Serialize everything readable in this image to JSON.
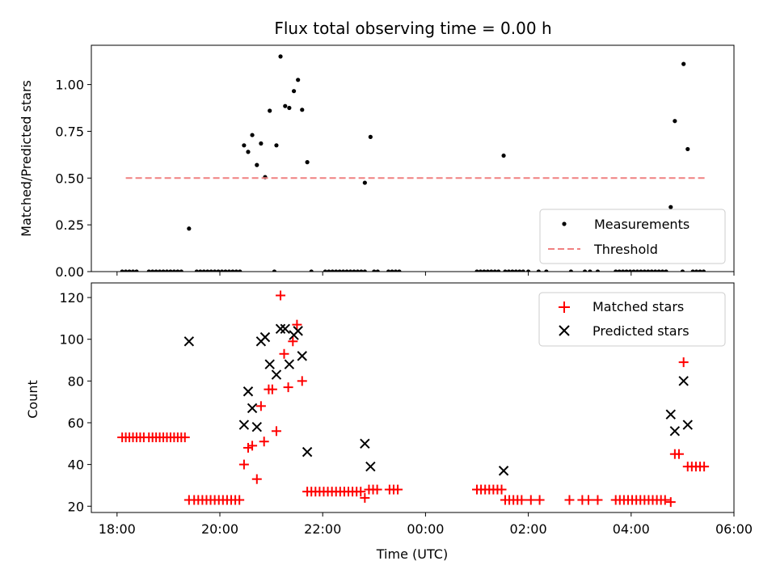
{
  "chart_data": [
    {
      "type": "scatter",
      "title": "Flux total observing time = 0.00 h",
      "xlabel": "",
      "ylabel": "Matched/Predicted stars",
      "xlim": [
        17.5,
        30.0
      ],
      "ylim": [
        0.0,
        1.21
      ],
      "xticks_hidden": true,
      "yticks": [
        0.0,
        0.25,
        0.5,
        0.75,
        1.0
      ],
      "ytick_labels": [
        "0.00",
        "0.25",
        "0.50",
        "0.75",
        "1.00"
      ],
      "legend_position": "lower-right",
      "series": [
        {
          "name": "Measurements",
          "kind": "scatter",
          "marker": "dot",
          "color": "#000000",
          "points": [
            [
              18.1,
              0
            ],
            [
              18.17,
              0
            ],
            [
              18.24,
              0
            ],
            [
              18.31,
              0
            ],
            [
              18.38,
              0
            ],
            [
              18.62,
              0
            ],
            [
              18.69,
              0
            ],
            [
              18.76,
              0
            ],
            [
              18.83,
              0
            ],
            [
              18.9,
              0
            ],
            [
              18.97,
              0
            ],
            [
              19.04,
              0
            ],
            [
              19.11,
              0
            ],
            [
              19.18,
              0
            ],
            [
              19.25,
              0
            ],
            [
              19.4,
              0.23
            ],
            [
              19.55,
              0
            ],
            [
              19.62,
              0
            ],
            [
              19.69,
              0
            ],
            [
              19.76,
              0
            ],
            [
              19.83,
              0
            ],
            [
              19.9,
              0
            ],
            [
              19.97,
              0
            ],
            [
              20.04,
              0
            ],
            [
              20.11,
              0
            ],
            [
              20.18,
              0
            ],
            [
              20.25,
              0
            ],
            [
              20.32,
              0
            ],
            [
              20.39,
              0
            ],
            [
              20.47,
              0.675
            ],
            [
              20.55,
              0.64
            ],
            [
              20.63,
              0.73
            ],
            [
              20.72,
              0.57
            ],
            [
              20.8,
              0.685
            ],
            [
              20.88,
              0.505
            ],
            [
              20.97,
              0.86
            ],
            [
              21.06,
              0
            ],
            [
              21.1,
              0.675
            ],
            [
              21.18,
              1.15
            ],
            [
              21.27,
              0.885
            ],
            [
              21.35,
              0.875
            ],
            [
              21.44,
              0.965
            ],
            [
              21.52,
              1.025
            ],
            [
              21.6,
              0.865
            ],
            [
              21.7,
              0.585
            ],
            [
              21.78,
              0
            ],
            [
              22.05,
              0
            ],
            [
              22.12,
              0
            ],
            [
              22.19,
              0
            ],
            [
              22.26,
              0
            ],
            [
              22.33,
              0
            ],
            [
              22.4,
              0
            ],
            [
              22.47,
              0
            ],
            [
              22.54,
              0
            ],
            [
              22.61,
              0
            ],
            [
              22.68,
              0
            ],
            [
              22.75,
              0
            ],
            [
              22.82,
              0
            ],
            [
              22.82,
              0.475
            ],
            [
              22.93,
              0.72
            ],
            [
              23.0,
              0
            ],
            [
              23.07,
              0
            ],
            [
              23.28,
              0
            ],
            [
              23.35,
              0
            ],
            [
              23.42,
              0
            ],
            [
              23.49,
              0
            ],
            [
              25.0,
              0
            ],
            [
              25.07,
              0
            ],
            [
              25.14,
              0
            ],
            [
              25.21,
              0
            ],
            [
              25.28,
              0
            ],
            [
              25.35,
              0
            ],
            [
              25.42,
              0
            ],
            [
              25.52,
              0.62
            ],
            [
              25.55,
              0
            ],
            [
              25.62,
              0
            ],
            [
              25.69,
              0
            ],
            [
              25.76,
              0
            ],
            [
              25.83,
              0
            ],
            [
              25.9,
              0
            ],
            [
              26.0,
              0
            ],
            [
              26.2,
              0
            ],
            [
              26.35,
              0
            ],
            [
              26.83,
              0
            ],
            [
              27.1,
              0
            ],
            [
              27.2,
              0
            ],
            [
              27.35,
              0
            ],
            [
              27.7,
              0
            ],
            [
              27.77,
              0
            ],
            [
              27.84,
              0
            ],
            [
              27.91,
              0
            ],
            [
              27.98,
              0
            ],
            [
              28.05,
              0
            ],
            [
              28.12,
              0
            ],
            [
              28.19,
              0
            ],
            [
              28.26,
              0
            ],
            [
              28.33,
              0
            ],
            [
              28.4,
              0
            ],
            [
              28.47,
              0
            ],
            [
              28.54,
              0
            ],
            [
              28.61,
              0
            ],
            [
              28.68,
              0
            ],
            [
              28.77,
              0.345
            ],
            [
              28.85,
              0.805
            ],
            [
              29.0,
              0
            ],
            [
              29.02,
              1.11
            ],
            [
              29.1,
              0.655
            ],
            [
              29.2,
              0
            ],
            [
              29.27,
              0
            ],
            [
              29.34,
              0
            ],
            [
              29.41,
              0
            ]
          ]
        },
        {
          "name": "Threshold",
          "kind": "line",
          "style": "dashed",
          "color": "#f08080",
          "x": [
            18.17,
            29.45
          ],
          "y": [
            0.5,
            0.5
          ]
        }
      ]
    },
    {
      "type": "scatter",
      "title": "",
      "xlabel": "Time (UTC)",
      "ylabel": "Count",
      "xlim": [
        17.5,
        30.0
      ],
      "ylim": [
        17,
        127
      ],
      "xticks": [
        18,
        20,
        22,
        24,
        26,
        28,
        30
      ],
      "xtick_labels": [
        "18:00",
        "20:00",
        "22:00",
        "00:00",
        "02:00",
        "04:00",
        "06:00"
      ],
      "yticks": [
        20,
        40,
        60,
        80,
        100,
        120
      ],
      "ytick_labels": [
        "20",
        "40",
        "60",
        "80",
        "100",
        "120"
      ],
      "legend_position": "upper-right",
      "series": [
        {
          "name": "Matched stars",
          "kind": "scatter",
          "marker": "plus",
          "color": "#ff0000",
          "points": [
            [
              18.1,
              53
            ],
            [
              18.17,
              53
            ],
            [
              18.24,
              53
            ],
            [
              18.31,
              53
            ],
            [
              18.38,
              53
            ],
            [
              18.45,
              53
            ],
            [
              18.52,
              53
            ],
            [
              18.62,
              53
            ],
            [
              18.69,
              53
            ],
            [
              18.76,
              53
            ],
            [
              18.83,
              53
            ],
            [
              18.9,
              53
            ],
            [
              18.97,
              53
            ],
            [
              19.04,
              53
            ],
            [
              19.11,
              53
            ],
            [
              19.18,
              53
            ],
            [
              19.25,
              53
            ],
            [
              19.32,
              53
            ],
            [
              19.4,
              23
            ],
            [
              19.5,
              23
            ],
            [
              19.58,
              23
            ],
            [
              19.66,
              23
            ],
            [
              19.74,
              23
            ],
            [
              19.82,
              23
            ],
            [
              19.9,
              23
            ],
            [
              19.98,
              23
            ],
            [
              20.06,
              23
            ],
            [
              20.14,
              23
            ],
            [
              20.22,
              23
            ],
            [
              20.3,
              23
            ],
            [
              20.38,
              23
            ],
            [
              20.47,
              40
            ],
            [
              20.55,
              48
            ],
            [
              20.63,
              49
            ],
            [
              20.72,
              33
            ],
            [
              20.8,
              68
            ],
            [
              20.86,
              51
            ],
            [
              20.95,
              76
            ],
            [
              21.02,
              76
            ],
            [
              21.1,
              56
            ],
            [
              21.18,
              121
            ],
            [
              21.25,
              93
            ],
            [
              21.33,
              77
            ],
            [
              21.42,
              99
            ],
            [
              21.5,
              107
            ],
            [
              21.6,
              80
            ],
            [
              21.7,
              27
            ],
            [
              21.78,
              27
            ],
            [
              21.86,
              27
            ],
            [
              21.94,
              27
            ],
            [
              22.02,
              27
            ],
            [
              22.1,
              27
            ],
            [
              22.18,
              27
            ],
            [
              22.26,
              27
            ],
            [
              22.34,
              27
            ],
            [
              22.42,
              27
            ],
            [
              22.5,
              27
            ],
            [
              22.58,
              27
            ],
            [
              22.66,
              27
            ],
            [
              22.74,
              27
            ],
            [
              22.82,
              24
            ],
            [
              22.9,
              28
            ],
            [
              22.98,
              28
            ],
            [
              23.06,
              28
            ],
            [
              23.3,
              28
            ],
            [
              23.38,
              28
            ],
            [
              23.46,
              28
            ],
            [
              25.0,
              28
            ],
            [
              25.08,
              28
            ],
            [
              25.16,
              28
            ],
            [
              25.24,
              28
            ],
            [
              25.32,
              28
            ],
            [
              25.4,
              28
            ],
            [
              25.48,
              28
            ],
            [
              25.55,
              23
            ],
            [
              25.63,
              23
            ],
            [
              25.71,
              23
            ],
            [
              25.79,
              23
            ],
            [
              25.87,
              23
            ],
            [
              26.05,
              23
            ],
            [
              26.22,
              23
            ],
            [
              26.8,
              23
            ],
            [
              27.05,
              23
            ],
            [
              27.17,
              23
            ],
            [
              27.35,
              23
            ],
            [
              27.7,
              23
            ],
            [
              27.78,
              23
            ],
            [
              27.86,
              23
            ],
            [
              27.94,
              23
            ],
            [
              28.02,
              23
            ],
            [
              28.1,
              23
            ],
            [
              28.18,
              23
            ],
            [
              28.26,
              23
            ],
            [
              28.34,
              23
            ],
            [
              28.42,
              23
            ],
            [
              28.5,
              23
            ],
            [
              28.58,
              23
            ],
            [
              28.66,
              23
            ],
            [
              28.77,
              22
            ],
            [
              28.85,
              45
            ],
            [
              28.93,
              45
            ],
            [
              29.02,
              89
            ],
            [
              29.1,
              39
            ],
            [
              29.18,
              39
            ],
            [
              29.26,
              39
            ],
            [
              29.34,
              39
            ],
            [
              29.42,
              39
            ]
          ]
        },
        {
          "name": "Predicted stars",
          "kind": "scatter",
          "marker": "x",
          "color": "#000000",
          "points": [
            [
              19.4,
              99
            ],
            [
              20.47,
              59
            ],
            [
              20.55,
              75
            ],
            [
              20.63,
              67
            ],
            [
              20.72,
              58
            ],
            [
              20.8,
              99
            ],
            [
              20.88,
              101
            ],
            [
              20.97,
              88
            ],
            [
              21.1,
              83
            ],
            [
              21.18,
              105
            ],
            [
              21.27,
              105
            ],
            [
              21.35,
              88
            ],
            [
              21.44,
              102
            ],
            [
              21.52,
              104
            ],
            [
              21.6,
              92
            ],
            [
              21.7,
              46
            ],
            [
              22.82,
              50
            ],
            [
              22.93,
              39
            ],
            [
              25.52,
              37
            ],
            [
              28.77,
              64
            ],
            [
              28.85,
              56
            ],
            [
              29.02,
              80
            ],
            [
              29.1,
              59
            ]
          ]
        }
      ]
    }
  ]
}
